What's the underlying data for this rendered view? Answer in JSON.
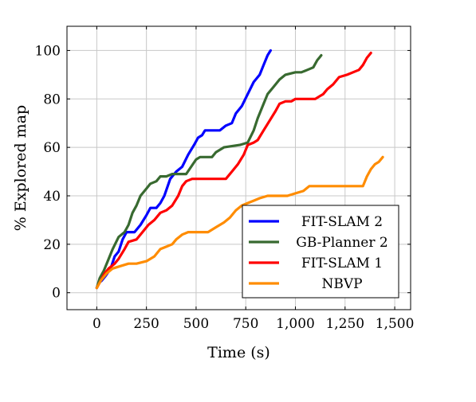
{
  "chart_data": {
    "type": "line",
    "title": "",
    "xlabel": "Time (s)",
    "ylabel": "% Explored map",
    "xlim": [
      -150,
      1580
    ],
    "ylim": [
      -7,
      110
    ],
    "xticks": [
      0,
      250,
      500,
      750,
      1000,
      1250,
      1500
    ],
    "xtick_labels": [
      "0",
      "250",
      "500",
      "750",
      "1,000",
      "1,250",
      "1,500"
    ],
    "yticks": [
      0,
      20,
      40,
      60,
      80,
      100
    ],
    "ytick_labels": [
      "0",
      "20",
      "40",
      "60",
      "80",
      "100"
    ],
    "grid": true,
    "legend_position": "bottom-right",
    "series": [
      {
        "name": "FIT-SLAM 2",
        "color": "#0000ff",
        "points": [
          [
            0,
            2
          ],
          [
            10,
            4
          ],
          [
            25,
            5
          ],
          [
            45,
            7
          ],
          [
            70,
            10
          ],
          [
            90,
            15
          ],
          [
            110,
            17
          ],
          [
            130,
            22
          ],
          [
            150,
            25
          ],
          [
            190,
            25
          ],
          [
            220,
            28
          ],
          [
            250,
            32
          ],
          [
            270,
            35
          ],
          [
            300,
            35
          ],
          [
            320,
            37
          ],
          [
            340,
            40
          ],
          [
            370,
            47
          ],
          [
            400,
            50
          ],
          [
            430,
            52
          ],
          [
            460,
            57
          ],
          [
            490,
            61
          ],
          [
            510,
            64
          ],
          [
            530,
            65
          ],
          [
            545,
            67
          ],
          [
            620,
            67
          ],
          [
            650,
            69
          ],
          [
            680,
            70
          ],
          [
            700,
            74
          ],
          [
            730,
            77
          ],
          [
            760,
            82
          ],
          [
            790,
            87
          ],
          [
            820,
            90
          ],
          [
            840,
            94
          ],
          [
            860,
            98
          ],
          [
            875,
            100
          ]
        ]
      },
      {
        "name": "GB-Planner 2",
        "color": "#386a30",
        "points": [
          [
            0,
            2
          ],
          [
            15,
            6
          ],
          [
            35,
            9
          ],
          [
            55,
            13
          ],
          [
            80,
            18
          ],
          [
            110,
            23
          ],
          [
            140,
            25
          ],
          [
            160,
            28
          ],
          [
            180,
            33
          ],
          [
            200,
            36
          ],
          [
            220,
            40
          ],
          [
            250,
            43
          ],
          [
            270,
            45
          ],
          [
            300,
            46
          ],
          [
            320,
            48
          ],
          [
            350,
            48
          ],
          [
            380,
            49
          ],
          [
            450,
            49
          ],
          [
            475,
            52
          ],
          [
            500,
            55
          ],
          [
            520,
            56
          ],
          [
            580,
            56
          ],
          [
            600,
            58
          ],
          [
            640,
            60
          ],
          [
            720,
            61
          ],
          [
            760,
            62
          ],
          [
            790,
            67
          ],
          [
            810,
            72
          ],
          [
            840,
            78
          ],
          [
            860,
            82
          ],
          [
            890,
            85
          ],
          [
            920,
            88
          ],
          [
            950,
            90
          ],
          [
            1000,
            91
          ],
          [
            1030,
            91
          ],
          [
            1060,
            92
          ],
          [
            1090,
            93
          ],
          [
            1110,
            96
          ],
          [
            1120,
            97
          ],
          [
            1130,
            98
          ]
        ]
      },
      {
        "name": "FIT-SLAM 1",
        "color": "#ff0000",
        "points": [
          [
            0,
            2
          ],
          [
            20,
            5
          ],
          [
            40,
            8
          ],
          [
            60,
            10
          ],
          [
            90,
            12
          ],
          [
            110,
            14
          ],
          [
            140,
            18
          ],
          [
            160,
            21
          ],
          [
            200,
            22
          ],
          [
            230,
            25
          ],
          [
            260,
            28
          ],
          [
            290,
            30
          ],
          [
            320,
            33
          ],
          [
            350,
            34
          ],
          [
            380,
            36
          ],
          [
            410,
            40
          ],
          [
            430,
            44
          ],
          [
            450,
            46
          ],
          [
            480,
            47
          ],
          [
            520,
            47
          ],
          [
            650,
            47
          ],
          [
            680,
            50
          ],
          [
            710,
            53
          ],
          [
            740,
            57
          ],
          [
            760,
            61
          ],
          [
            790,
            62
          ],
          [
            810,
            63
          ],
          [
            840,
            67
          ],
          [
            870,
            71
          ],
          [
            900,
            75
          ],
          [
            920,
            78
          ],
          [
            950,
            79
          ],
          [
            980,
            79
          ],
          [
            1000,
            80
          ],
          [
            1100,
            80
          ],
          [
            1120,
            81
          ],
          [
            1140,
            82
          ],
          [
            1160,
            84
          ],
          [
            1190,
            86
          ],
          [
            1220,
            89
          ],
          [
            1260,
            90
          ],
          [
            1290,
            91
          ],
          [
            1320,
            92
          ],
          [
            1340,
            94
          ],
          [
            1360,
            97
          ],
          [
            1380,
            99
          ]
        ]
      },
      {
        "name": "NBVP",
        "color": "#ff8c00",
        "points": [
          [
            0,
            2
          ],
          [
            20,
            5
          ],
          [
            50,
            8
          ],
          [
            80,
            10
          ],
          [
            120,
            11
          ],
          [
            160,
            12
          ],
          [
            200,
            12
          ],
          [
            250,
            13
          ],
          [
            290,
            15
          ],
          [
            320,
            18
          ],
          [
            350,
            19
          ],
          [
            380,
            20
          ],
          [
            400,
            22
          ],
          [
            430,
            24
          ],
          [
            460,
            25
          ],
          [
            500,
            25
          ],
          [
            560,
            25
          ],
          [
            600,
            27
          ],
          [
            640,
            29
          ],
          [
            670,
            31
          ],
          [
            700,
            34
          ],
          [
            730,
            36
          ],
          [
            760,
            37
          ],
          [
            790,
            38
          ],
          [
            820,
            39
          ],
          [
            860,
            40
          ],
          [
            900,
            40
          ],
          [
            960,
            40
          ],
          [
            1000,
            41
          ],
          [
            1040,
            42
          ],
          [
            1070,
            44
          ],
          [
            1100,
            44
          ],
          [
            1200,
            44
          ],
          [
            1340,
            44
          ],
          [
            1360,
            48
          ],
          [
            1380,
            51
          ],
          [
            1400,
            53
          ],
          [
            1420,
            54
          ],
          [
            1440,
            56
          ]
        ]
      }
    ]
  }
}
